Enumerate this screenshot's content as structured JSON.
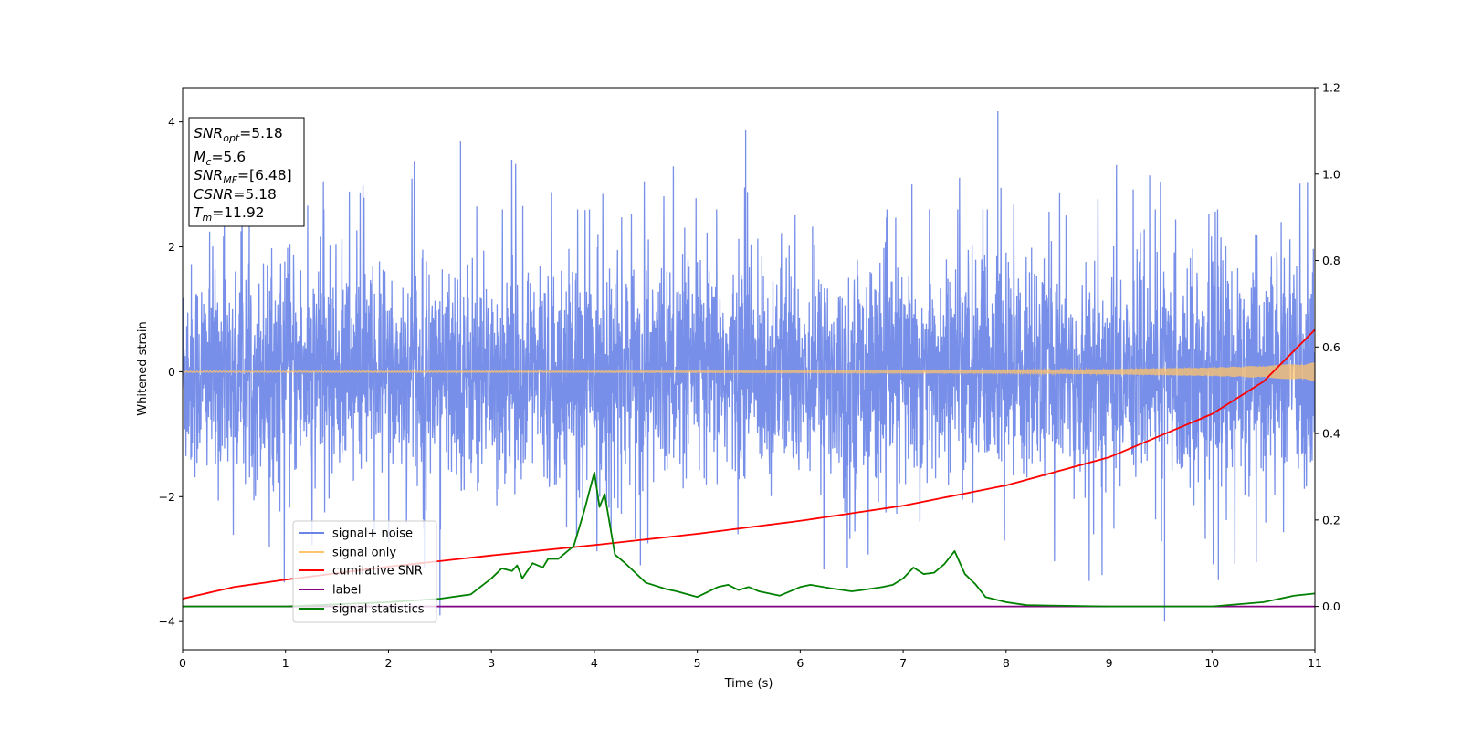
{
  "chart_data": {
    "type": "line",
    "xlabel": "Time (s)",
    "ylabel": "Whitened strain",
    "xlim": [
      0,
      11
    ],
    "ylim": [
      -4.45,
      4.55
    ],
    "y2lim": [
      -0.1,
      1.2
    ],
    "x_ticks": [
      "0",
      "1",
      "2",
      "3",
      "4",
      "5",
      "6",
      "7",
      "8",
      "9",
      "10",
      "11"
    ],
    "y_ticks": [
      "-4",
      "-2",
      "0",
      "2",
      "4"
    ],
    "y2_ticks": [
      "0.0",
      "0.2",
      "0.4",
      "0.6",
      "0.8",
      "1.0",
      "1.2"
    ],
    "grid": false,
    "legend_placement": "lower-left",
    "annotation": {
      "snr_opt": {
        "var": "SNR",
        "sub": "opt",
        "value": "=5.18"
      },
      "mc": {
        "var": "M",
        "sub": "c",
        "value": "=5.6"
      },
      "snr_mf": {
        "var": "SNR",
        "sub": "MF",
        "value": "=[6.48]"
      },
      "csnr": {
        "var": "CSNR",
        "value": "=5.18"
      },
      "tm": {
        "var": "T",
        "sub": "m",
        "value": "=11.92"
      }
    },
    "series": [
      {
        "name": "signal+ noise",
        "axis": "left",
        "color": "#6b85e6",
        "noise": {
          "std": 0.85,
          "typical_max": 2.6,
          "extreme_max": 4.17,
          "extreme_min": -4.0
        }
      },
      {
        "name": "signal only",
        "axis": "left",
        "color": "#ffc36b",
        "envelope_x": [
          0,
          4,
          8,
          9,
          10,
          10.5,
          11
        ],
        "envelope_amp": [
          0.01,
          0.01,
          0.02,
          0.04,
          0.07,
          0.1,
          0.15
        ]
      },
      {
        "name": "cumilative SNR",
        "axis": "right",
        "color": "#ff0000",
        "x": [
          0,
          0.5,
          1,
          2,
          3,
          4,
          5,
          6,
          7,
          8,
          9,
          10,
          10.5,
          11
        ],
        "y": [
          0.018,
          0.045,
          0.062,
          0.092,
          0.118,
          0.142,
          0.168,
          0.198,
          0.233,
          0.28,
          0.345,
          0.445,
          0.52,
          0.64
        ]
      },
      {
        "name": "label",
        "axis": "right",
        "color": "#800080",
        "x": [
          0,
          11
        ],
        "y": [
          0.0,
          0.0
        ]
      },
      {
        "name": "signal statistics",
        "axis": "right",
        "color": "#008000",
        "x": [
          0,
          1,
          2,
          2.5,
          2.8,
          3.0,
          3.1,
          3.2,
          3.25,
          3.3,
          3.4,
          3.5,
          3.55,
          3.65,
          3.8,
          3.9,
          4.0,
          4.05,
          4.1,
          4.2,
          4.3,
          4.5,
          4.7,
          4.8,
          5.0,
          5.2,
          5.3,
          5.4,
          5.5,
          5.6,
          5.8,
          6.0,
          6.1,
          6.3,
          6.5,
          6.6,
          6.8,
          6.9,
          7.0,
          7.1,
          7.2,
          7.3,
          7.4,
          7.5,
          7.6,
          7.7,
          7.8,
          8.0,
          8.2,
          9.0,
          10.0,
          10.5,
          10.8,
          11.0
        ],
        "y": [
          0.0,
          0.0,
          0.01,
          0.018,
          0.028,
          0.065,
          0.088,
          0.082,
          0.095,
          0.065,
          0.1,
          0.09,
          0.11,
          0.11,
          0.14,
          0.22,
          0.31,
          0.23,
          0.26,
          0.12,
          0.1,
          0.055,
          0.04,
          0.035,
          0.022,
          0.045,
          0.05,
          0.038,
          0.045,
          0.035,
          0.025,
          0.045,
          0.05,
          0.042,
          0.035,
          0.038,
          0.045,
          0.05,
          0.065,
          0.09,
          0.075,
          0.078,
          0.098,
          0.128,
          0.075,
          0.052,
          0.022,
          0.01,
          0.003,
          0.0,
          0.0,
          0.01,
          0.025,
          0.03
        ]
      }
    ]
  }
}
